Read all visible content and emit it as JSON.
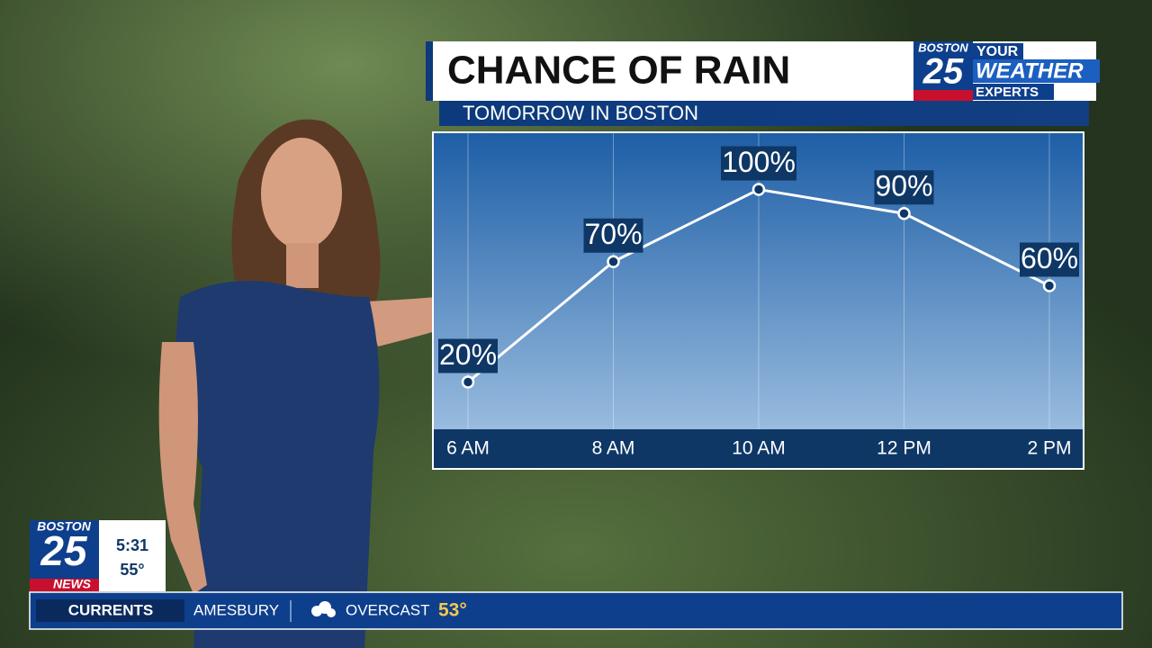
{
  "chart_data": {
    "type": "line",
    "title": "CHANCE OF RAIN",
    "subtitle": "TOMORROW IN BOSTON",
    "categories": [
      "6 AM",
      "8 AM",
      "10 AM",
      "12 PM",
      "2 PM"
    ],
    "values": [
      20,
      70,
      100,
      90,
      60
    ],
    "value_labels": [
      "20%",
      "70%",
      "100%",
      "90%",
      "60%"
    ],
    "color": "#ffffff",
    "ylim": [
      0,
      120
    ]
  },
  "logo": {
    "station": "BOSTON",
    "channel": "25",
    "line1": "YOUR",
    "line2": "WEATHER",
    "line3": "EXPERTS"
  },
  "corner_bug": {
    "station": "BOSTON",
    "channel": "25",
    "brand": "NEWS",
    "time": "5:31",
    "temperature": "55°"
  },
  "ticker": {
    "label": "CURRENTS",
    "location": "AMESBURY",
    "condition": "OVERCAST",
    "temperature": "53°"
  }
}
